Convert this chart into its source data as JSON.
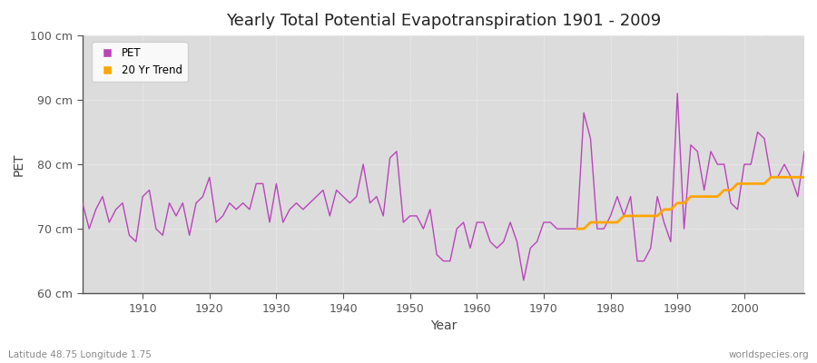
{
  "title": "Yearly Total Potential Evapotranspiration 1901 - 2009",
  "xlabel": "Year",
  "ylabel": "PET",
  "subtitle_left": "Latitude 48.75 Longitude 1.75",
  "subtitle_right": "worldspecies.org",
  "ylim": [
    60,
    100
  ],
  "xlim": [
    1901,
    2009
  ],
  "yticks": [
    60,
    70,
    80,
    90,
    100
  ],
  "ytick_labels": [
    "60 cm",
    "70 cm",
    "80 cm",
    "90 cm",
    "100 cm"
  ],
  "pet_color": "#bb44bb",
  "trend_color": "#ffa500",
  "fig_bg_color": "#ffffff",
  "plot_bg_color": "#dcdcdc",
  "grid_color": "#ffffff",
  "pet_years": [
    1901,
    1902,
    1903,
    1904,
    1905,
    1906,
    1907,
    1908,
    1909,
    1910,
    1911,
    1912,
    1913,
    1914,
    1915,
    1916,
    1917,
    1918,
    1919,
    1920,
    1921,
    1922,
    1923,
    1924,
    1925,
    1926,
    1927,
    1928,
    1929,
    1930,
    1931,
    1932,
    1933,
    1934,
    1935,
    1936,
    1937,
    1938,
    1939,
    1940,
    1941,
    1942,
    1943,
    1944,
    1945,
    1946,
    1947,
    1948,
    1949,
    1950,
    1951,
    1952,
    1953,
    1954,
    1955,
    1956,
    1957,
    1958,
    1959,
    1960,
    1961,
    1962,
    1963,
    1964,
    1965,
    1966,
    1967,
    1968,
    1969,
    1970,
    1971,
    1972,
    1973,
    1974,
    1975,
    1976,
    1977,
    1978,
    1979,
    1980,
    1981,
    1982,
    1983,
    1984,
    1985,
    1986,
    1987,
    1988,
    1989,
    1990,
    1991,
    1992,
    1993,
    1994,
    1995,
    1996,
    1997,
    1998,
    1999,
    2000,
    2001,
    2002,
    2003,
    2004,
    2005,
    2006,
    2007,
    2008,
    2009
  ],
  "pet_values": [
    74,
    70,
    73,
    75,
    71,
    73,
    74,
    69,
    68,
    75,
    76,
    70,
    69,
    74,
    72,
    74,
    69,
    74,
    75,
    78,
    71,
    72,
    74,
    73,
    74,
    73,
    77,
    77,
    71,
    77,
    71,
    73,
    74,
    73,
    74,
    75,
    76,
    72,
    76,
    75,
    74,
    75,
    80,
    74,
    75,
    72,
    81,
    82,
    71,
    72,
    72,
    70,
    73,
    66,
    65,
    65,
    70,
    71,
    67,
    71,
    71,
    68,
    67,
    68,
    71,
    68,
    62,
    67,
    68,
    71,
    71,
    70,
    70,
    70,
    70,
    88,
    84,
    70,
    70,
    72,
    75,
    72,
    75,
    65,
    65,
    67,
    75,
    71,
    68,
    91,
    70,
    83,
    82,
    76,
    82,
    80,
    80,
    74,
    73,
    80,
    80,
    85,
    84,
    78,
    78,
    80,
    78,
    75,
    82
  ],
  "trend_years": [
    1975,
    1976,
    1977,
    1978,
    1979,
    1980,
    1981,
    1982,
    1983,
    1984,
    1985,
    1986,
    1987,
    1988,
    1989,
    1990,
    1991,
    1992,
    1993,
    1994,
    1995,
    1996,
    1997,
    1998,
    1999,
    2000,
    2001,
    2002,
    2003,
    2004,
    2005,
    2006,
    2007,
    2008,
    2009
  ],
  "trend_values": [
    70,
    70,
    71,
    71,
    71,
    71,
    71,
    72,
    72,
    72,
    72,
    72,
    72,
    73,
    73,
    74,
    74,
    75,
    75,
    75,
    75,
    75,
    76,
    76,
    77,
    77,
    77,
    77,
    77,
    78,
    78,
    78,
    78,
    78,
    78
  ]
}
